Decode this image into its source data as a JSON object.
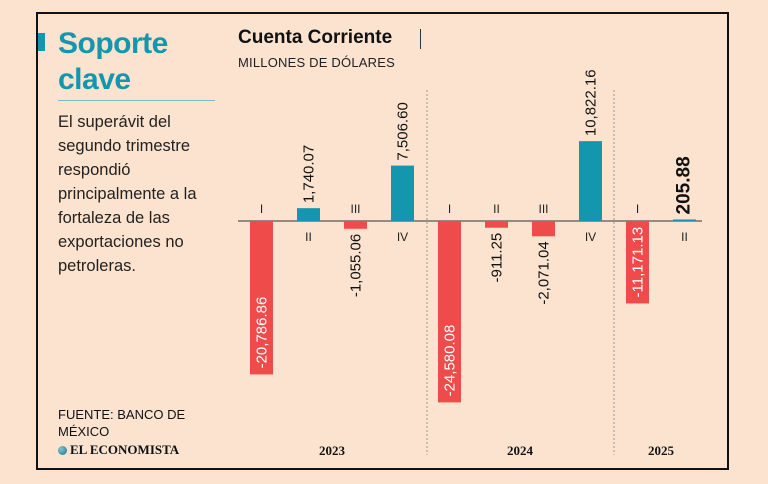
{
  "headline": "Soporte clave",
  "summary": "El superávit del segundo trimestre respondió principalmente a la fortaleza de las exportaciones no petroleras.",
  "source": "FUENTE: BANCO DE MÉXICO",
  "brand": "EL ECONOMISTA",
  "colors": {
    "positive": "#1497ae",
    "negative": "#ef4b4b",
    "accent": "#1497ae",
    "background": "#fbe3cf"
  },
  "chart_data": {
    "type": "bar",
    "title": "Cuenta Corriente",
    "subtitle": "MILLONES DE DÓLARES",
    "xlabel": "",
    "ylabel": "",
    "categories": [
      "I",
      "II",
      "III",
      "IV",
      "I",
      "II",
      "III",
      "IV",
      "I",
      "II"
    ],
    "groups": [
      {
        "label": "2023",
        "start": 0,
        "count": 4
      },
      {
        "label": "2024",
        "start": 4,
        "count": 4
      },
      {
        "label": "2025",
        "start": 8,
        "count": 2
      }
    ],
    "values": [
      -20786.86,
      1740.07,
      -1055.06,
      7506.6,
      -24580.08,
      -911.25,
      -2071.04,
      10822.16,
      -11171.13,
      205.88
    ],
    "labels": [
      "-20,786.86",
      "1,740.07",
      "-1,055.06",
      "7,506.60",
      "-24,580.08",
      "-911.25",
      "-2,071.04",
      "10,822.16",
      "-11,171.13",
      "205.88"
    ],
    "highlight_index": 9,
    "ylim": [
      -25000,
      12000
    ],
    "grid": false,
    "legend": "none"
  }
}
